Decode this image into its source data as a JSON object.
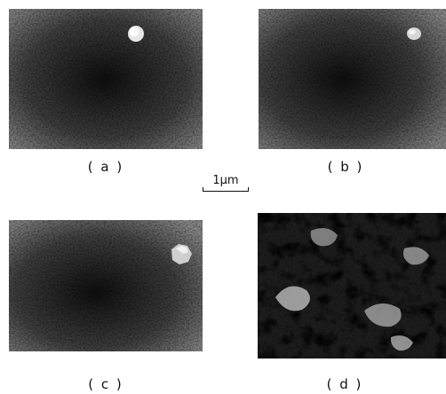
{
  "panels": [
    {
      "id": "a",
      "caption": "( a )"
    },
    {
      "id": "b",
      "caption": "( b )"
    },
    {
      "id": "c",
      "caption": "( c )"
    },
    {
      "id": "d",
      "caption": "( d )"
    }
  ],
  "scale_bar": {
    "label": "1μm"
  }
}
